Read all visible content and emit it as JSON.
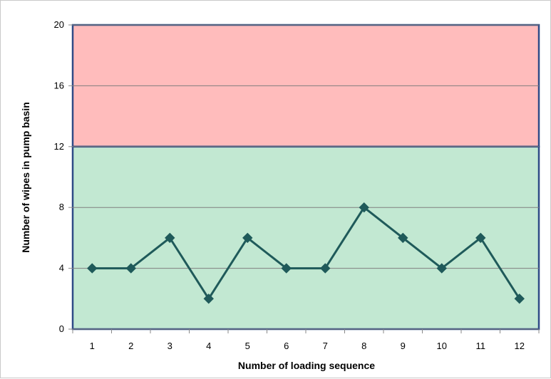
{
  "chart_data": {
    "type": "line",
    "xlabel": "Number of loading sequence",
    "ylabel": "Number of wipes in pump basin",
    "categories": [
      "1",
      "2",
      "3",
      "4",
      "5",
      "6",
      "7",
      "8",
      "9",
      "10",
      "11",
      "12"
    ],
    "series": [
      {
        "values": [
          4,
          4,
          6,
          2,
          6,
          4,
          4,
          8,
          6,
          4,
          6,
          2
        ]
      }
    ],
    "ylim": [
      0,
      20
    ],
    "yticks": [
      0,
      4,
      8,
      12,
      16,
      20
    ],
    "grid": true,
    "bands": [
      {
        "from": 0,
        "to": 12,
        "fill": "#c2e8d2"
      },
      {
        "from": 12,
        "to": 20,
        "fill": "#ffbcbc"
      }
    ],
    "colors": {
      "line": "#1f5a5a",
      "marker": "#1f5a5a",
      "band_border": "#2e4a86",
      "grid": "#7f7f7f"
    }
  }
}
